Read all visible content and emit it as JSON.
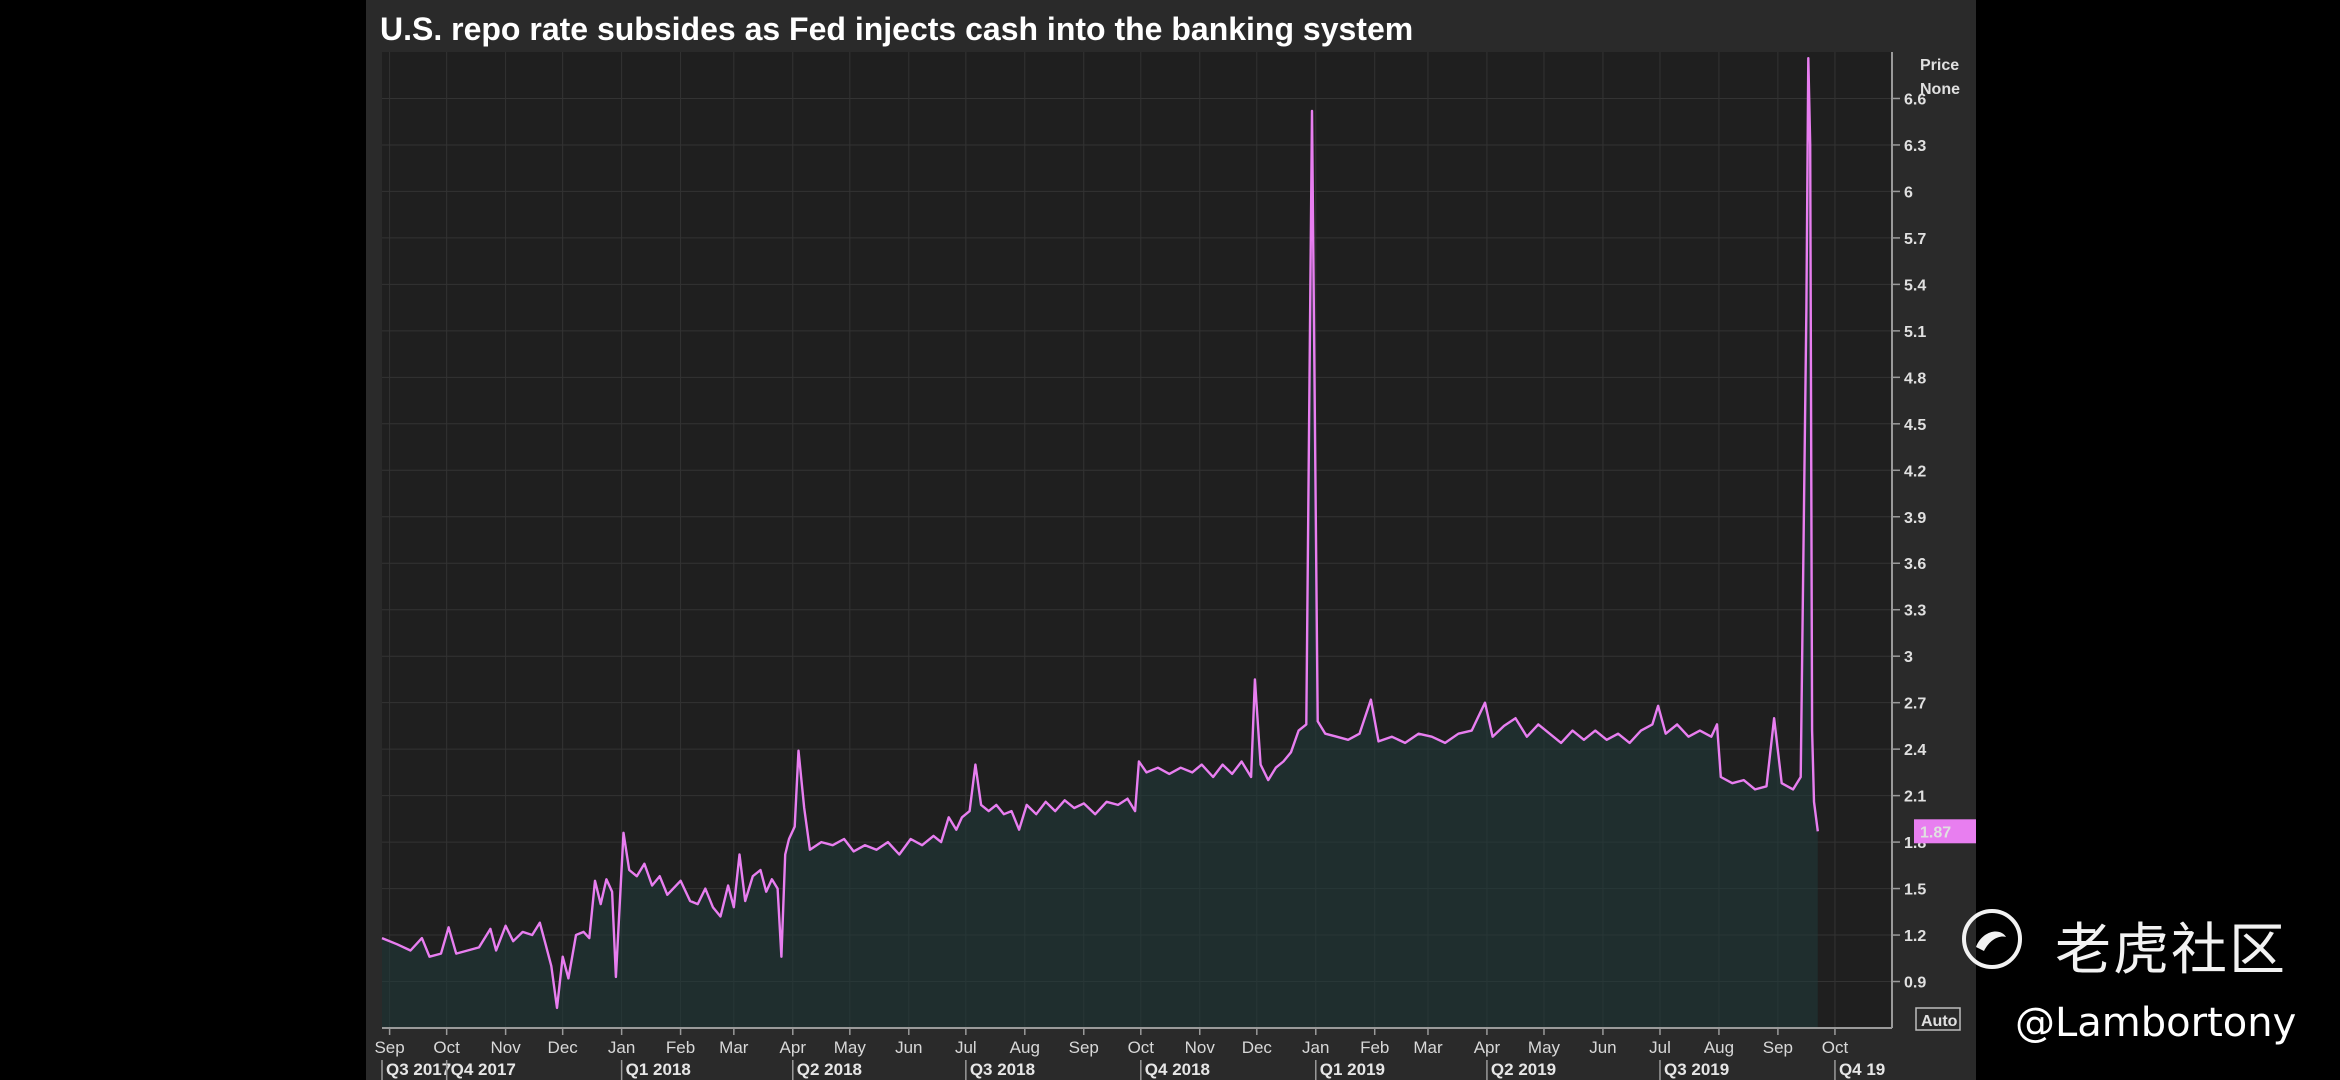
{
  "chart_data": {
    "type": "area",
    "title": "U.S. repo rate subsides as Fed injects cash into the banking system",
    "y_header": [
      "Price",
      "None"
    ],
    "y_ticks": [
      0.9,
      1.2,
      1.5,
      1.8,
      2.1,
      2.4,
      2.7,
      3,
      3.3,
      3.6,
      3.9,
      4.2,
      4.5,
      4.8,
      5.1,
      5.4,
      5.7,
      6,
      6.3,
      6.6
    ],
    "ylim": [
      0.6,
      6.9
    ],
    "xlim": [
      "2017-08-28",
      "2019-10-31"
    ],
    "x_month_ticks": [
      {
        "label": "Sep",
        "date": "2017-09-01"
      },
      {
        "label": "Oct",
        "date": "2017-10-01"
      },
      {
        "label": "Nov",
        "date": "2017-11-01"
      },
      {
        "label": "Dec",
        "date": "2017-12-01"
      },
      {
        "label": "Jan",
        "date": "2018-01-01"
      },
      {
        "label": "Feb",
        "date": "2018-02-01"
      },
      {
        "label": "Mar",
        "date": "2018-03-01"
      },
      {
        "label": "Apr",
        "date": "2018-04-01"
      },
      {
        "label": "May",
        "date": "2018-05-01"
      },
      {
        "label": "Jun",
        "date": "2018-06-01"
      },
      {
        "label": "Jul",
        "date": "2018-07-01"
      },
      {
        "label": "Aug",
        "date": "2018-08-01"
      },
      {
        "label": "Sep",
        "date": "2018-09-01"
      },
      {
        "label": "Oct",
        "date": "2018-10-01"
      },
      {
        "label": "Nov",
        "date": "2018-11-01"
      },
      {
        "label": "Dec",
        "date": "2018-12-01"
      },
      {
        "label": "Jan",
        "date": "2019-01-01"
      },
      {
        "label": "Feb",
        "date": "2019-02-01"
      },
      {
        "label": "Mar",
        "date": "2019-03-01"
      },
      {
        "label": "Apr",
        "date": "2019-04-01"
      },
      {
        "label": "May",
        "date": "2019-05-01"
      },
      {
        "label": "Jun",
        "date": "2019-06-01"
      },
      {
        "label": "Jul",
        "date": "2019-07-01"
      },
      {
        "label": "Aug",
        "date": "2019-08-01"
      },
      {
        "label": "Sep",
        "date": "2019-09-01"
      },
      {
        "label": "Oct",
        "date": "2019-10-01"
      }
    ],
    "x_quarter_ticks": [
      {
        "label": "Q3 2017",
        "date": "2017-08-28"
      },
      {
        "label": "Q4 2017",
        "date": "2017-10-01"
      },
      {
        "label": "Q1 2018",
        "date": "2018-01-01"
      },
      {
        "label": "Q2 2018",
        "date": "2018-04-01"
      },
      {
        "label": "Q3 2018",
        "date": "2018-07-01"
      },
      {
        "label": "Q4 2018",
        "date": "2018-10-01"
      },
      {
        "label": "Q1 2019",
        "date": "2019-01-01"
      },
      {
        "label": "Q2 2019",
        "date": "2019-04-01"
      },
      {
        "label": "Q3 2019",
        "date": "2019-07-01"
      },
      {
        "label": "Q4 19",
        "date": "2019-10-01"
      }
    ],
    "last_value_label": "1.87",
    "auto_label": "Auto",
    "grid": true,
    "series": [
      {
        "color": "#e87ef0",
        "points": [
          [
            "2017-08-28",
            1.18
          ],
          [
            "2017-09-05",
            1.14
          ],
          [
            "2017-09-12",
            1.1
          ],
          [
            "2017-09-18",
            1.18
          ],
          [
            "2017-09-22",
            1.06
          ],
          [
            "2017-09-28",
            1.08
          ],
          [
            "2017-10-02",
            1.25
          ],
          [
            "2017-10-06",
            1.08
          ],
          [
            "2017-10-12",
            1.1
          ],
          [
            "2017-10-18",
            1.12
          ],
          [
            "2017-10-24",
            1.24
          ],
          [
            "2017-10-27",
            1.1
          ],
          [
            "2017-11-01",
            1.26
          ],
          [
            "2017-11-05",
            1.16
          ],
          [
            "2017-11-10",
            1.22
          ],
          [
            "2017-11-15",
            1.2
          ],
          [
            "2017-11-19",
            1.28
          ],
          [
            "2017-11-22",
            1.14
          ],
          [
            "2017-11-25",
            1.0
          ],
          [
            "2017-11-28",
            0.73
          ],
          [
            "2017-12-01",
            1.06
          ],
          [
            "2017-12-04",
            0.92
          ],
          [
            "2017-12-08",
            1.2
          ],
          [
            "2017-12-12",
            1.22
          ],
          [
            "2017-12-15",
            1.18
          ],
          [
            "2017-12-18",
            1.55
          ],
          [
            "2017-12-21",
            1.4
          ],
          [
            "2017-12-24",
            1.56
          ],
          [
            "2017-12-27",
            1.48
          ],
          [
            "2017-12-29",
            0.93
          ],
          [
            "2018-01-02",
            1.86
          ],
          [
            "2018-01-05",
            1.62
          ],
          [
            "2018-01-09",
            1.58
          ],
          [
            "2018-01-13",
            1.66
          ],
          [
            "2018-01-17",
            1.52
          ],
          [
            "2018-01-21",
            1.58
          ],
          [
            "2018-01-25",
            1.46
          ],
          [
            "2018-02-01",
            1.55
          ],
          [
            "2018-02-06",
            1.42
          ],
          [
            "2018-02-10",
            1.4
          ],
          [
            "2018-02-14",
            1.5
          ],
          [
            "2018-02-18",
            1.38
          ],
          [
            "2018-02-22",
            1.32
          ],
          [
            "2018-02-26",
            1.52
          ],
          [
            "2018-03-01",
            1.38
          ],
          [
            "2018-03-04",
            1.72
          ],
          [
            "2018-03-07",
            1.42
          ],
          [
            "2018-03-11",
            1.58
          ],
          [
            "2018-03-15",
            1.62
          ],
          [
            "2018-03-18",
            1.48
          ],
          [
            "2018-03-21",
            1.56
          ],
          [
            "2018-03-24",
            1.5
          ],
          [
            "2018-03-26",
            1.06
          ],
          [
            "2018-03-28",
            1.72
          ],
          [
            "2018-03-30",
            1.82
          ],
          [
            "2018-04-02",
            1.9
          ],
          [
            "2018-04-04",
            2.39
          ],
          [
            "2018-04-07",
            2.02
          ],
          [
            "2018-04-10",
            1.75
          ],
          [
            "2018-04-16",
            1.8
          ],
          [
            "2018-04-22",
            1.78
          ],
          [
            "2018-04-28",
            1.82
          ],
          [
            "2018-05-03",
            1.74
          ],
          [
            "2018-05-09",
            1.78
          ],
          [
            "2018-05-15",
            1.75
          ],
          [
            "2018-05-21",
            1.8
          ],
          [
            "2018-05-27",
            1.72
          ],
          [
            "2018-06-02",
            1.82
          ],
          [
            "2018-06-08",
            1.78
          ],
          [
            "2018-06-14",
            1.84
          ],
          [
            "2018-06-18",
            1.8
          ],
          [
            "2018-06-22",
            1.96
          ],
          [
            "2018-06-26",
            1.88
          ],
          [
            "2018-06-29",
            1.96
          ],
          [
            "2018-07-03",
            2.0
          ],
          [
            "2018-07-06",
            2.3
          ],
          [
            "2018-07-09",
            2.04
          ],
          [
            "2018-07-13",
            2.0
          ],
          [
            "2018-07-17",
            2.04
          ],
          [
            "2018-07-21",
            1.98
          ],
          [
            "2018-07-25",
            2.0
          ],
          [
            "2018-07-29",
            1.88
          ],
          [
            "2018-08-02",
            2.04
          ],
          [
            "2018-08-07",
            1.98
          ],
          [
            "2018-08-12",
            2.06
          ],
          [
            "2018-08-17",
            2.0
          ],
          [
            "2018-08-22",
            2.07
          ],
          [
            "2018-08-27",
            2.02
          ],
          [
            "2018-09-01",
            2.05
          ],
          [
            "2018-09-07",
            1.98
          ],
          [
            "2018-09-13",
            2.06
          ],
          [
            "2018-09-19",
            2.04
          ],
          [
            "2018-09-24",
            2.08
          ],
          [
            "2018-09-28",
            2.0
          ],
          [
            "2018-09-30",
            2.32
          ],
          [
            "2018-10-04",
            2.25
          ],
          [
            "2018-10-10",
            2.28
          ],
          [
            "2018-10-16",
            2.24
          ],
          [
            "2018-10-22",
            2.28
          ],
          [
            "2018-10-28",
            2.25
          ],
          [
            "2018-11-02",
            2.3
          ],
          [
            "2018-11-08",
            2.22
          ],
          [
            "2018-11-13",
            2.3
          ],
          [
            "2018-11-18",
            2.24
          ],
          [
            "2018-11-23",
            2.32
          ],
          [
            "2018-11-28",
            2.22
          ],
          [
            "2018-11-30",
            2.85
          ],
          [
            "2018-12-03",
            2.3
          ],
          [
            "2018-12-07",
            2.2
          ],
          [
            "2018-12-11",
            2.28
          ],
          [
            "2018-12-15",
            2.32
          ],
          [
            "2018-12-19",
            2.38
          ],
          [
            "2018-12-23",
            2.52
          ],
          [
            "2018-12-27",
            2.56
          ],
          [
            "2018-12-30",
            6.52
          ],
          [
            "2019-01-02",
            2.58
          ],
          [
            "2019-01-06",
            2.5
          ],
          [
            "2019-01-12",
            2.48
          ],
          [
            "2019-01-18",
            2.46
          ],
          [
            "2019-01-24",
            2.5
          ],
          [
            "2019-01-30",
            2.72
          ],
          [
            "2019-02-03",
            2.45
          ],
          [
            "2019-02-10",
            2.48
          ],
          [
            "2019-02-17",
            2.44
          ],
          [
            "2019-02-24",
            2.5
          ],
          [
            "2019-03-03",
            2.48
          ],
          [
            "2019-03-10",
            2.44
          ],
          [
            "2019-03-17",
            2.5
          ],
          [
            "2019-03-24",
            2.52
          ],
          [
            "2019-03-31",
            2.7
          ],
          [
            "2019-04-04",
            2.48
          ],
          [
            "2019-04-10",
            2.55
          ],
          [
            "2019-04-16",
            2.6
          ],
          [
            "2019-04-22",
            2.48
          ],
          [
            "2019-04-28",
            2.56
          ],
          [
            "2019-05-04",
            2.5
          ],
          [
            "2019-05-10",
            2.44
          ],
          [
            "2019-05-16",
            2.52
          ],
          [
            "2019-05-22",
            2.46
          ],
          [
            "2019-05-28",
            2.52
          ],
          [
            "2019-06-03",
            2.46
          ],
          [
            "2019-06-09",
            2.5
          ],
          [
            "2019-06-15",
            2.44
          ],
          [
            "2019-06-21",
            2.52
          ],
          [
            "2019-06-27",
            2.56
          ],
          [
            "2019-06-30",
            2.68
          ],
          [
            "2019-07-04",
            2.5
          ],
          [
            "2019-07-10",
            2.56
          ],
          [
            "2019-07-16",
            2.48
          ],
          [
            "2019-07-22",
            2.52
          ],
          [
            "2019-07-28",
            2.48
          ],
          [
            "2019-07-31",
            2.56
          ],
          [
            "2019-08-02",
            2.22
          ],
          [
            "2019-08-08",
            2.18
          ],
          [
            "2019-08-14",
            2.2
          ],
          [
            "2019-08-20",
            2.14
          ],
          [
            "2019-08-26",
            2.16
          ],
          [
            "2019-08-30",
            2.6
          ],
          [
            "2019-09-03",
            2.18
          ],
          [
            "2019-09-09",
            2.14
          ],
          [
            "2019-09-13",
            2.22
          ],
          [
            "2019-09-16",
            5.25
          ],
          [
            "2019-09-17",
            6.86
          ],
          [
            "2019-09-18",
            6.3
          ],
          [
            "2019-09-19",
            2.52
          ],
          [
            "2019-09-20",
            2.06
          ],
          [
            "2019-09-22",
            1.87
          ]
        ]
      }
    ]
  },
  "watermark": {
    "brand_cn": "老虎社区",
    "user": "@Lambortony"
  }
}
